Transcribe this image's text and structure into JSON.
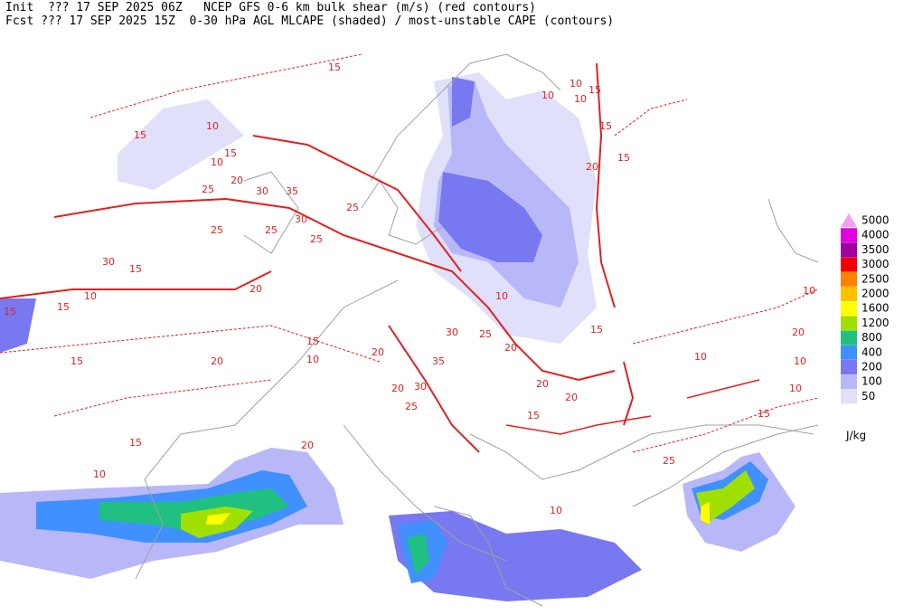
{
  "header": {
    "init": "Init  ??? 17 SEP 2025 06Z",
    "title1": "NCEP GFS 0-6 km bulk shear (m/s) (red contours)",
    "fcst": "Fcst ??? 17 SEP 2025 15Z",
    "title2": "0-30 hPa AGL MLCAPE (shaded) / most-unstable CAPE (contours)"
  },
  "legend": {
    "levels": [
      {
        "label": "5000",
        "color": "#f0a0f0"
      },
      {
        "label": "4000",
        "color": "#e000e0"
      },
      {
        "label": "3500",
        "color": "#a000a0"
      },
      {
        "label": "3000",
        "color": "#f00000"
      },
      {
        "label": "2500",
        "color": "#ff8000"
      },
      {
        "label": "2000",
        "color": "#ffc000"
      },
      {
        "label": "1600",
        "color": "#ffff00"
      },
      {
        "label": "1200",
        "color": "#a0e000"
      },
      {
        "label": "800",
        "color": "#20c080"
      },
      {
        "label": "400",
        "color": "#4090ff"
      },
      {
        "label": "200",
        "color": "#7878f0"
      },
      {
        "label": "100",
        "color": "#b8b8f8"
      },
      {
        "label": "50",
        "color": "#e0e0fa"
      }
    ],
    "unit": "J/kg"
  },
  "contour_labels": [
    "15",
    "10",
    "15",
    "20",
    "10",
    "25",
    "30",
    "35",
    "25",
    "30",
    "25",
    "20",
    "15",
    "10",
    "15",
    "15",
    "15",
    "20",
    "25",
    "30",
    "20",
    "15",
    "10",
    "20",
    "25",
    "30",
    "35",
    "30",
    "25",
    "20",
    "15",
    "10",
    "10",
    "15",
    "20",
    "10",
    "20",
    "15",
    "20",
    "25",
    "10",
    "15",
    "10",
    "10",
    "15",
    "20",
    "15",
    "10",
    "10",
    "10",
    "15",
    "10",
    "20",
    "15",
    "25"
  ]
}
